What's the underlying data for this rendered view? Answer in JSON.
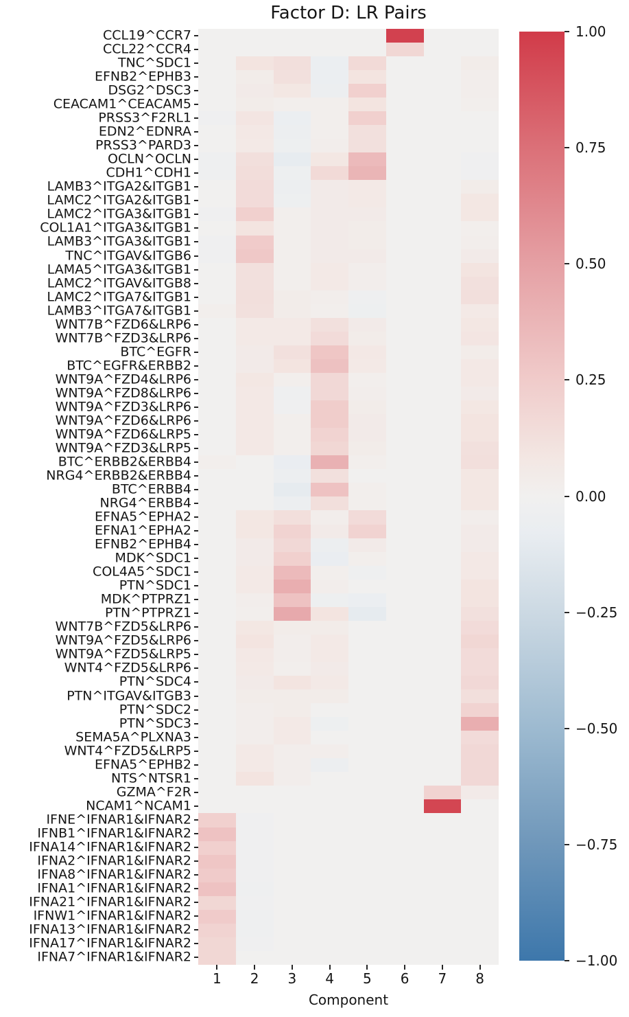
{
  "figure": {
    "background_color": "#ffffff",
    "text_color": "#151515",
    "tick_color": "#262626"
  },
  "chart_data": {
    "type": "heatmap",
    "title": "Factor D: LR Pairs",
    "xlabel": "Component",
    "ylabel": "",
    "x_tick_labels": [
      "1",
      "2",
      "3",
      "4",
      "5",
      "6",
      "7",
      "8"
    ],
    "value_range": [
      -1.0,
      1.0
    ],
    "grid": "off",
    "legend_position": "colorbar-right",
    "rows": [
      {
        "label": "CCL19^CCR7",
        "values": [
          0,
          0,
          0,
          0,
          0,
          0.97,
          0,
          0
        ]
      },
      {
        "label": "CCL22^CCR4",
        "values": [
          0,
          0,
          0,
          0,
          0,
          0.18,
          0,
          0
        ]
      },
      {
        "label": "TNC^SDC1",
        "values": [
          0,
          0.1,
          0.13,
          -0.06,
          0.16,
          0,
          0,
          0.04
        ]
      },
      {
        "label": "EFNB2^EPHB3",
        "values": [
          0,
          0.04,
          0.12,
          -0.06,
          0.1,
          0,
          0,
          0.03
        ]
      },
      {
        "label": "DSG2^DSC3",
        "values": [
          0,
          0.05,
          0.08,
          -0.05,
          0.22,
          0,
          0,
          0.03
        ]
      },
      {
        "label": "CEACAM1^CEACAM5",
        "values": [
          0,
          0.04,
          0.02,
          0.02,
          0.1,
          0,
          0,
          0.02
        ]
      },
      {
        "label": "PRSS3^F2RL1",
        "values": [
          -0.02,
          0.09,
          -0.06,
          0.02,
          0.22,
          0,
          0,
          0
        ]
      },
      {
        "label": "EDN2^EDNRA",
        "values": [
          0,
          0.07,
          -0.05,
          0.02,
          0.12,
          0,
          0,
          0
        ]
      },
      {
        "label": "PRSS3^PARD3",
        "values": [
          0,
          0.06,
          -0.04,
          0.03,
          0.12,
          0,
          0,
          0
        ]
      },
      {
        "label": "OCLN^OCLN",
        "values": [
          -0.03,
          0.13,
          -0.09,
          0.08,
          0.35,
          0,
          0,
          -0.02
        ]
      },
      {
        "label": "CDH1^CDH1",
        "values": [
          -0.03,
          0.14,
          -0.04,
          0.16,
          0.38,
          0,
          0,
          -0.02
        ]
      },
      {
        "label": "LAMB3^ITGA2&ITGB1",
        "values": [
          0,
          0.15,
          -0.05,
          0.05,
          0.06,
          0,
          0,
          0.04
        ]
      },
      {
        "label": "LAMC2^ITGA2&ITGB1",
        "values": [
          0,
          0.15,
          -0.04,
          0.05,
          0.06,
          0,
          0,
          0.08
        ]
      },
      {
        "label": "LAMC2^ITGA3&ITGB1",
        "values": [
          -0.02,
          0.22,
          0.02,
          0.05,
          0.05,
          0,
          0,
          0.08
        ]
      },
      {
        "label": "COL1A1^ITGA3&ITGB1",
        "values": [
          0,
          0.1,
          0.02,
          0.05,
          0.04,
          0,
          0,
          0.02
        ]
      },
      {
        "label": "LAMB3^ITGA3&ITGB1",
        "values": [
          -0.02,
          0.25,
          0.02,
          0.05,
          0.04,
          0,
          0,
          0.03
        ]
      },
      {
        "label": "TNC^ITGAV&ITGB6",
        "values": [
          -0.02,
          0.27,
          0.02,
          0.05,
          0.05,
          0,
          0,
          0.05
        ]
      },
      {
        "label": "LAMA5^ITGA3&ITGB1",
        "values": [
          0,
          0.12,
          0.02,
          0.06,
          0.03,
          0,
          0,
          0.1
        ]
      },
      {
        "label": "LAMC2^ITGAV&ITGB8",
        "values": [
          0,
          0.12,
          0.02,
          0.06,
          0.03,
          0,
          0,
          0.12
        ]
      },
      {
        "label": "LAMC2^ITGA7&ITGB1",
        "values": [
          0,
          0.13,
          0.04,
          0.03,
          -0.03,
          0,
          0,
          0.13
        ]
      },
      {
        "label": "LAMB3^ITGA7&ITGB1",
        "values": [
          0.02,
          0.12,
          0.04,
          0.02,
          -0.04,
          0,
          0,
          0.06
        ]
      },
      {
        "label": "WNT7B^FZD6&LRP6",
        "values": [
          0,
          0.06,
          0.06,
          0.12,
          0.05,
          0,
          0,
          0.08
        ]
      },
      {
        "label": "WNT7B^FZD3&LRP6",
        "values": [
          0,
          0.06,
          0.06,
          0.15,
          0.04,
          0,
          0,
          0.09
        ]
      },
      {
        "label": "BTC^EGFR",
        "values": [
          0,
          0.05,
          0.12,
          0.28,
          0.07,
          0,
          0,
          0.04
        ]
      },
      {
        "label": "BTC^EGFR&ERBB2",
        "values": [
          0,
          0.05,
          0.1,
          0.31,
          0.06,
          0,
          0,
          0.07
        ]
      },
      {
        "label": "WNT9A^FZD4&LRP6",
        "values": [
          0,
          0.08,
          0.02,
          0.17,
          0.02,
          0,
          0,
          0.07
        ]
      },
      {
        "label": "WNT9A^FZD8&LRP6",
        "values": [
          0,
          0.07,
          -0.03,
          0.17,
          0.03,
          0,
          0,
          0.05
        ]
      },
      {
        "label": "WNT9A^FZD3&LRP6",
        "values": [
          0,
          0.07,
          -0.02,
          0.24,
          0.04,
          0,
          0,
          0.08
        ]
      },
      {
        "label": "WNT9A^FZD6&LRP6",
        "values": [
          0,
          0.07,
          0.02,
          0.24,
          0.05,
          0,
          0,
          0.1
        ]
      },
      {
        "label": "WNT9A^FZD6&LRP5",
        "values": [
          0,
          0.07,
          0.02,
          0.2,
          0.05,
          0,
          0,
          0.1
        ]
      },
      {
        "label": "WNT9A^FZD3&LRP5",
        "values": [
          0,
          0.07,
          0.02,
          0.18,
          0.04,
          0,
          0,
          0.12
        ]
      },
      {
        "label": "BTC^ERBB2&ERBB4",
        "values": [
          0.02,
          0,
          -0.07,
          0.4,
          0.02,
          0,
          0,
          0.13
        ]
      },
      {
        "label": "NRG4^ERBB2&ERBB4",
        "values": [
          0,
          0,
          -0.05,
          0.12,
          0,
          0,
          0,
          0.08
        ]
      },
      {
        "label": "BTC^ERBB4",
        "values": [
          0,
          0,
          -0.1,
          0.3,
          0.02,
          0,
          0,
          0.08
        ]
      },
      {
        "label": "NRG4^ERBB4",
        "values": [
          0,
          0,
          -0.05,
          0.13,
          0.02,
          0,
          0,
          0.08
        ]
      },
      {
        "label": "EFNA5^EPHA2",
        "values": [
          0,
          0.08,
          0.13,
          0.03,
          0.15,
          0,
          0,
          0.03
        ]
      },
      {
        "label": "EFNA1^EPHA2",
        "values": [
          0,
          0.08,
          0.2,
          0.05,
          0.2,
          0,
          0,
          0.05
        ]
      },
      {
        "label": "EFNB2^EPHB4",
        "values": [
          0,
          0.05,
          0.17,
          -0.05,
          0.05,
          0,
          0,
          0.05
        ]
      },
      {
        "label": "MDK^SDC1",
        "values": [
          0,
          0.05,
          0.22,
          -0.07,
          0.02,
          0,
          0,
          0.07
        ]
      },
      {
        "label": "COL4A5^SDC1",
        "values": [
          0,
          0.06,
          0.35,
          0.02,
          -0.03,
          0,
          0,
          0.07
        ]
      },
      {
        "label": "PTN^SDC1",
        "values": [
          0,
          0.06,
          0.42,
          0.03,
          0,
          0,
          0,
          0.1
        ]
      },
      {
        "label": "MDK^PTPRZ1",
        "values": [
          0,
          0.03,
          0.3,
          -0.04,
          -0.06,
          0,
          0,
          0.1
        ]
      },
      {
        "label": "PTN^PTPRZ1",
        "values": [
          0,
          0.02,
          0.45,
          0.1,
          -0.1,
          0,
          0,
          0.12
        ]
      },
      {
        "label": "WNT7B^FZD5&LRP6",
        "values": [
          0,
          0.08,
          0.04,
          0.04,
          0,
          0,
          0,
          0.15
        ]
      },
      {
        "label": "WNT9A^FZD5&LRP6",
        "values": [
          0,
          0.1,
          0.03,
          0.06,
          0,
          0,
          0,
          0.18
        ]
      },
      {
        "label": "WNT9A^FZD5&LRP5",
        "values": [
          0,
          0.07,
          0.03,
          0.06,
          0,
          0,
          0,
          0.15
        ]
      },
      {
        "label": "WNT4^FZD5&LRP6",
        "values": [
          0,
          0.06,
          0.02,
          0.05,
          0,
          0,
          0,
          0.15
        ]
      },
      {
        "label": "PTN^SDC4",
        "values": [
          0,
          0.05,
          0.1,
          0.06,
          0,
          0,
          0,
          0.17
        ]
      },
      {
        "label": "PTN^ITGAV&ITGB3",
        "values": [
          0,
          0.04,
          0.04,
          0.04,
          0,
          0,
          0,
          0.13
        ]
      },
      {
        "label": "PTN^SDC2",
        "values": [
          0,
          0.03,
          0.04,
          0,
          0,
          0,
          0,
          0.2
        ]
      },
      {
        "label": "PTN^SDC3",
        "values": [
          0,
          0.03,
          0.06,
          -0.04,
          0,
          0,
          0,
          0.42
        ]
      },
      {
        "label": "SEMA5A^PLXNA3",
        "values": [
          0,
          0.03,
          0.06,
          0,
          0,
          0,
          0,
          0.15
        ]
      },
      {
        "label": "WNT4^FZD5&LRP5",
        "values": [
          0,
          0.06,
          0.03,
          0.03,
          0,
          0,
          0,
          0.17
        ]
      },
      {
        "label": "EFNA5^EPHB2",
        "values": [
          0,
          0.06,
          0.03,
          -0.05,
          0,
          0,
          0,
          0.17
        ]
      },
      {
        "label": "NTS^NTSR1",
        "values": [
          0,
          0.1,
          0.03,
          0,
          0,
          0,
          0,
          0.17
        ]
      },
      {
        "label": "GZMA^F2R",
        "values": [
          0,
          0,
          0,
          0,
          0,
          0,
          0.2,
          0.05
        ]
      },
      {
        "label": "NCAM1^NCAM1",
        "values": [
          0,
          0,
          0,
          0,
          0,
          0,
          0.95,
          0
        ]
      },
      {
        "label": "IFNE^IFNAR1&IFNAR2",
        "values": [
          0.22,
          -0.02,
          0,
          0,
          0,
          0,
          0,
          0
        ]
      },
      {
        "label": "IFNB1^IFNAR1&IFNAR2",
        "values": [
          0.3,
          -0.02,
          0,
          0,
          0,
          0,
          0,
          0
        ]
      },
      {
        "label": "IFNA14^IFNAR1&IFNAR2",
        "values": [
          0.22,
          -0.02,
          0,
          0,
          0,
          0,
          0,
          0
        ]
      },
      {
        "label": "IFNA2^IFNAR1&IFNAR2",
        "values": [
          0.28,
          -0.02,
          0,
          0,
          0,
          0,
          0,
          0
        ]
      },
      {
        "label": "IFNA8^IFNAR1&IFNAR2",
        "values": [
          0.25,
          -0.02,
          0,
          0,
          0,
          0,
          0,
          0
        ]
      },
      {
        "label": "IFNA1^IFNAR1&IFNAR2",
        "values": [
          0.3,
          -0.03,
          0,
          0,
          0,
          0,
          0,
          0
        ]
      },
      {
        "label": "IFNA21^IFNAR1&IFNAR2",
        "values": [
          0.18,
          -0.02,
          0,
          0,
          0,
          0,
          0,
          0
        ]
      },
      {
        "label": "IFNW1^IFNAR1&IFNAR2",
        "values": [
          0.25,
          -0.03,
          0,
          0,
          0,
          0,
          0,
          0
        ]
      },
      {
        "label": "IFNA13^IFNAR1&IFNAR2",
        "values": [
          0.2,
          -0.03,
          0,
          0,
          0,
          0,
          0,
          0
        ]
      },
      {
        "label": "IFNA17^IFNAR1&IFNAR2",
        "values": [
          0.18,
          -0.02,
          0,
          0,
          0,
          0,
          0,
          0
        ]
      },
      {
        "label": "IFNA7^IFNAR1&IFNAR2",
        "values": [
          0.18,
          0,
          0,
          0,
          0,
          0,
          0,
          0
        ]
      }
    ],
    "colorbar": {
      "tick_labels": [
        "1.00",
        "0.75",
        "0.50",
        "0.25",
        "0.00",
        "−0.25",
        "−0.50",
        "−0.75",
        "−1.00"
      ],
      "colormap_anchors": [
        {
          "v": 1.0,
          "color": "#d13b49"
        },
        {
          "v": 0.75,
          "color": "#db7078"
        },
        {
          "v": 0.5,
          "color": "#e5a0a4"
        },
        {
          "v": 0.25,
          "color": "#f0cbca"
        },
        {
          "v": 0.08,
          "color": "#f3e7e3"
        },
        {
          "v": 0.0,
          "color": "#f1f0ef"
        },
        {
          "v": -0.08,
          "color": "#e9edf1"
        },
        {
          "v": -0.25,
          "color": "#ccd9e3"
        },
        {
          "v": -0.5,
          "color": "#9dbad0"
        },
        {
          "v": -0.75,
          "color": "#6f97ba"
        },
        {
          "v": -1.0,
          "color": "#3d77ab"
        }
      ]
    }
  }
}
